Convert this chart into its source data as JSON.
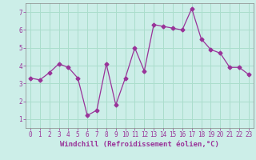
{
  "x": [
    0,
    1,
    2,
    3,
    4,
    5,
    6,
    7,
    8,
    9,
    10,
    11,
    12,
    13,
    14,
    15,
    16,
    17,
    18,
    19,
    20,
    21,
    22,
    23
  ],
  "y": [
    3.3,
    3.2,
    3.6,
    4.1,
    3.9,
    3.3,
    1.2,
    1.5,
    4.1,
    1.8,
    3.3,
    5.0,
    3.7,
    6.3,
    6.2,
    6.1,
    6.0,
    7.2,
    5.5,
    4.9,
    4.7,
    3.9,
    3.9,
    3.5
  ],
  "line_color": "#993399",
  "marker": "D",
  "marker_size": 2.5,
  "bg_color": "#cceee8",
  "grid_color": "#aaddcc",
  "xlabel": "Windchill (Refroidissement éolien,°C)",
  "xlabel_color": "#993399",
  "xlabel_fontsize": 6.5,
  "tick_label_color": "#993399",
  "tick_fontsize": 5.5,
  "xlim": [
    -0.5,
    23.5
  ],
  "ylim": [
    0.5,
    7.5
  ],
  "yticks": [
    1,
    2,
    3,
    4,
    5,
    6,
    7
  ],
  "xticks": [
    0,
    1,
    2,
    3,
    4,
    5,
    6,
    7,
    8,
    9,
    10,
    11,
    12,
    13,
    14,
    15,
    16,
    17,
    18,
    19,
    20,
    21,
    22,
    23
  ]
}
